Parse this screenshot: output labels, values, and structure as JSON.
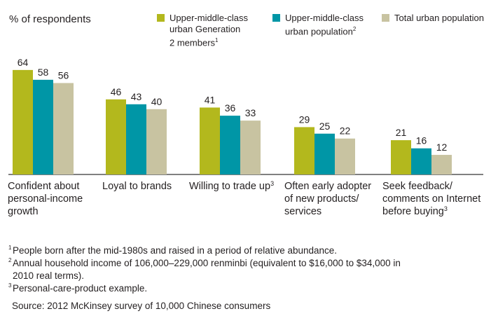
{
  "chart_data": {
    "type": "bar",
    "ylabel": "% of respondents",
    "colors": [
      "#b3b81d",
      "#0096a6",
      "#c8c3a1"
    ],
    "series": [
      {
        "name": "Upper-middle-class urban Generation 2 members",
        "name_lines": [
          "Upper-middle-class",
          "urban Generation",
          "2 members"
        ],
        "note": "1",
        "values": [
          64,
          46,
          41,
          29,
          21
        ]
      },
      {
        "name": "Upper-middle-class urban population",
        "name_lines": [
          "Upper-middle-class",
          "urban population"
        ],
        "note": "2",
        "values": [
          58,
          43,
          36,
          25,
          16
        ]
      },
      {
        "name": "Total urban population",
        "name_lines": [
          "Total urban population"
        ],
        "note": "",
        "values": [
          56,
          40,
          33,
          22,
          12
        ]
      }
    ],
    "categories": [
      {
        "lines": [
          "Confident about",
          "personal-income",
          "growth"
        ],
        "note": ""
      },
      {
        "lines": [
          "Loyal to brands"
        ],
        "note": ""
      },
      {
        "lines": [
          "Willing to trade up"
        ],
        "note": "3"
      },
      {
        "lines": [
          "Often early adopter",
          "of new products/",
          "services"
        ],
        "note": ""
      },
      {
        "lines": [
          "Seek feedback/",
          "comments on Internet",
          "before buying"
        ],
        "note": "3"
      }
    ]
  },
  "footnotes": [
    {
      "mark": "1",
      "text": "People born after the mid-1980s and raised in a period of relative abundance."
    },
    {
      "mark": "2",
      "text": "Annual household income of 106,000–229,000 renminbi (equivalent to $16,000 to $34,000 in",
      "continuation": "2010 real terms)."
    },
    {
      "mark": "3",
      "text": "Personal-care-product example."
    }
  ],
  "source": "Source: 2012 McKinsey survey of 10,000 Chinese consumers"
}
